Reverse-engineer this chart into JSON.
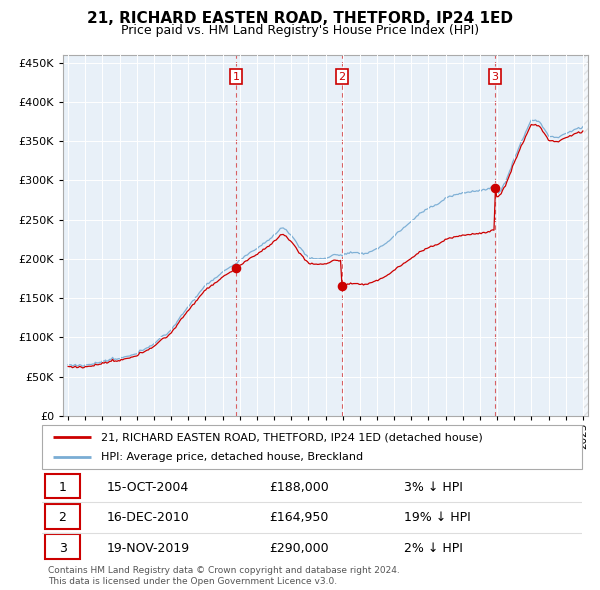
{
  "title": "21, RICHARD EASTEN ROAD, THETFORD, IP24 1ED",
  "subtitle": "Price paid vs. HM Land Registry's House Price Index (HPI)",
  "hpi_label": "HPI: Average price, detached house, Breckland",
  "property_label": "21, RICHARD EASTEN ROAD, THETFORD, IP24 1ED (detached house)",
  "footnote1": "Contains HM Land Registry data © Crown copyright and database right 2024.",
  "footnote2": "This data is licensed under the Open Government Licence v3.0.",
  "transactions": [
    {
      "num": 1,
      "date": "15-OCT-2004",
      "price": 188000,
      "hpi_pct": "3%",
      "direction": "↓"
    },
    {
      "num": 2,
      "date": "16-DEC-2010",
      "price": 164950,
      "hpi_pct": "19%",
      "direction": "↓"
    },
    {
      "num": 3,
      "date": "19-NOV-2019",
      "price": 290000,
      "hpi_pct": "2%",
      "direction": "↓"
    }
  ],
  "transaction_years": [
    2004.79,
    2010.96,
    2019.89
  ],
  "transaction_prices": [
    188000,
    164950,
    290000
  ],
  "property_color": "#cc0000",
  "hpi_color": "#7aadd4",
  "background_color": "#e8f0f8",
  "plot_bg_color": "#e8f0f8",
  "ylim": [
    0,
    460000
  ],
  "yticks": [
    0,
    50000,
    100000,
    150000,
    200000,
    250000,
    300000,
    350000,
    400000,
    450000
  ],
  "xlim": [
    1994.7,
    2025.3
  ],
  "xticks": [
    1995,
    1996,
    1997,
    1998,
    1999,
    2000,
    2001,
    2002,
    2003,
    2004,
    2005,
    2006,
    2007,
    2008,
    2009,
    2010,
    2011,
    2012,
    2013,
    2014,
    2015,
    2016,
    2017,
    2018,
    2019,
    2020,
    2021,
    2022,
    2023,
    2024,
    2025
  ]
}
